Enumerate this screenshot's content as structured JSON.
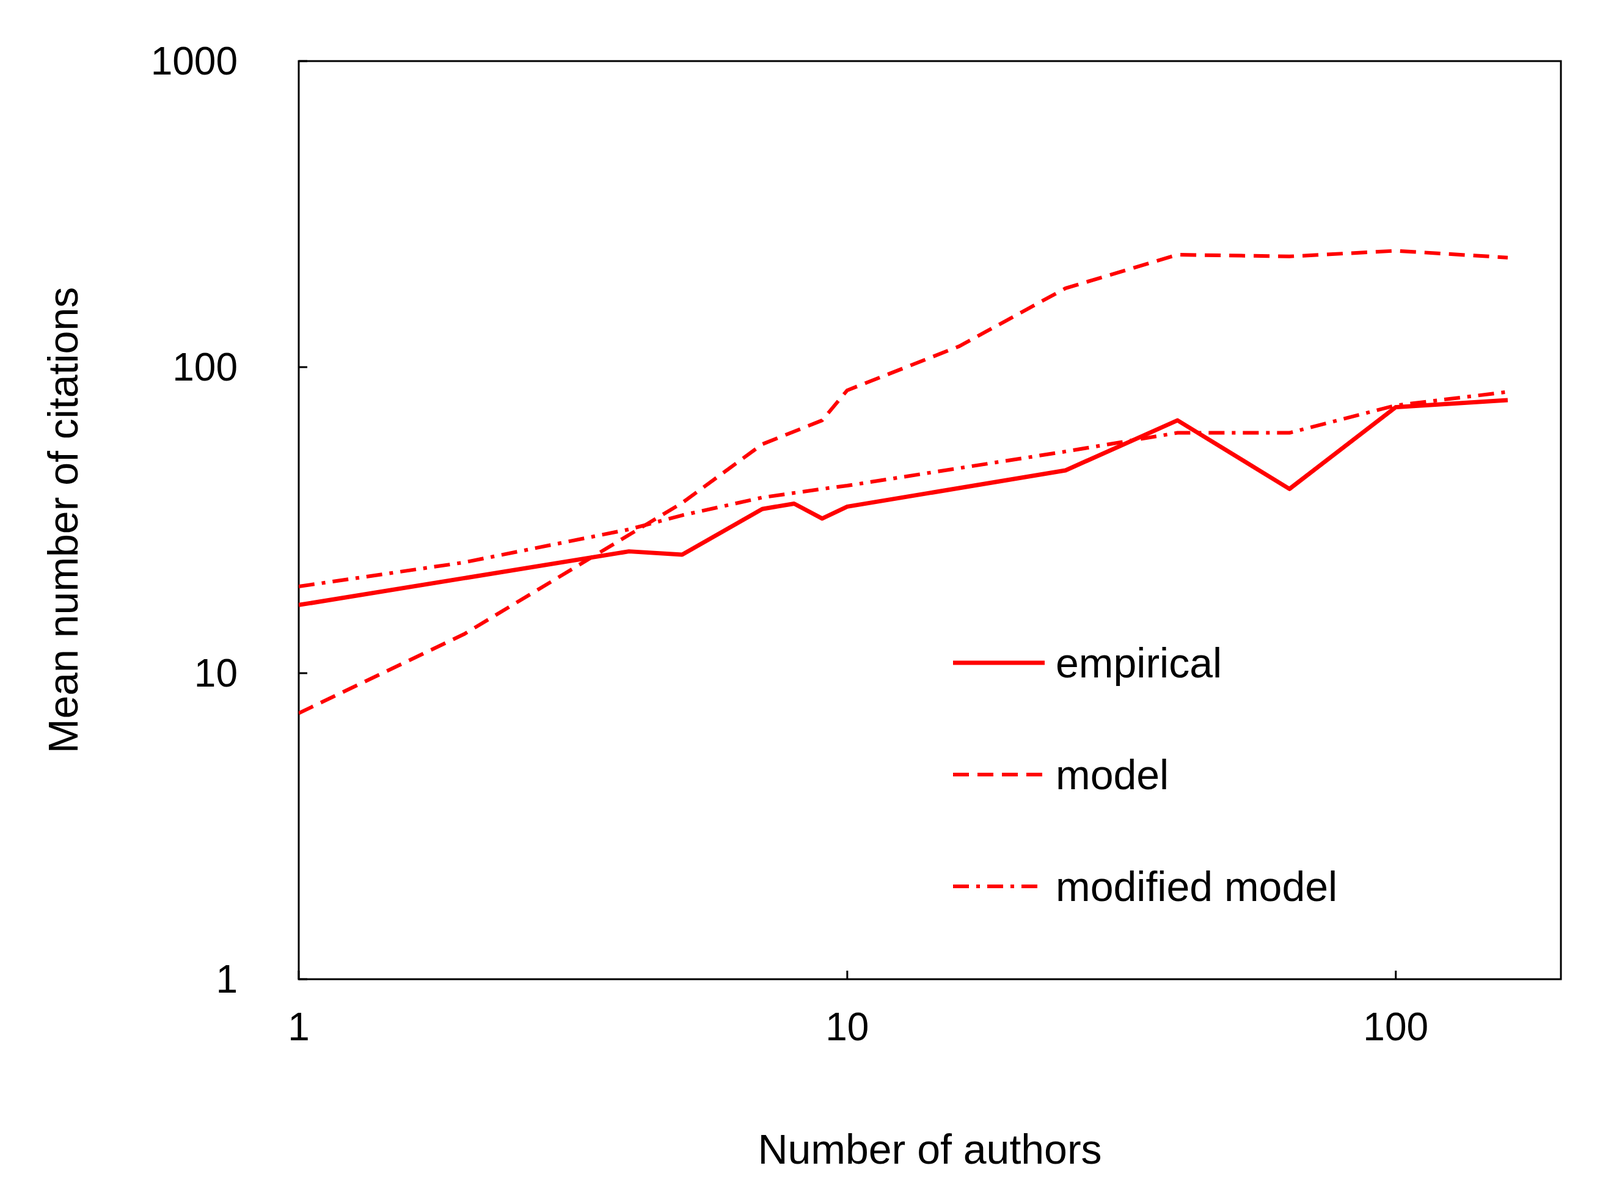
{
  "chart_data": {
    "type": "line",
    "log": true,
    "x_label": "Number of authors",
    "y_label": "Mean number of citations",
    "xlim": [
      1,
      200
    ],
    "ylim": [
      1,
      1000
    ],
    "xticks": [
      1,
      10,
      100
    ],
    "yticks": [
      1,
      10,
      100,
      1000
    ],
    "legend": "lower right",
    "series": [
      {
        "name": "empirical",
        "color": "#ff0000",
        "line_style": "solid",
        "x": [
          1,
          4,
          5,
          7,
          8,
          9,
          10,
          25,
          40,
          64,
          100,
          160
        ],
        "values": [
          16.7,
          25,
          24.4,
          34.4,
          35.8,
          32,
          35,
          46,
          67,
          40,
          74,
          78
        ]
      },
      {
        "name": "model",
        "color": "#ff0000",
        "line_style": "dashed",
        "x": [
          1,
          2,
          5,
          7,
          9,
          10,
          16,
          25,
          40,
          64,
          100,
          160
        ],
        "values": [
          7.4,
          13.4,
          36,
          56,
          67,
          84,
          117,
          181,
          233,
          230,
          240,
          228
        ]
      },
      {
        "name": "modified model",
        "color": "#ff0000",
        "line_style": "dashdot",
        "x": [
          1,
          2,
          4,
          5,
          7,
          9,
          10,
          25,
          40,
          64,
          100,
          160
        ],
        "values": [
          19.2,
          23,
          29.5,
          32.8,
          37.5,
          40,
          41,
          53,
          61,
          61,
          75,
          83
        ]
      }
    ]
  }
}
